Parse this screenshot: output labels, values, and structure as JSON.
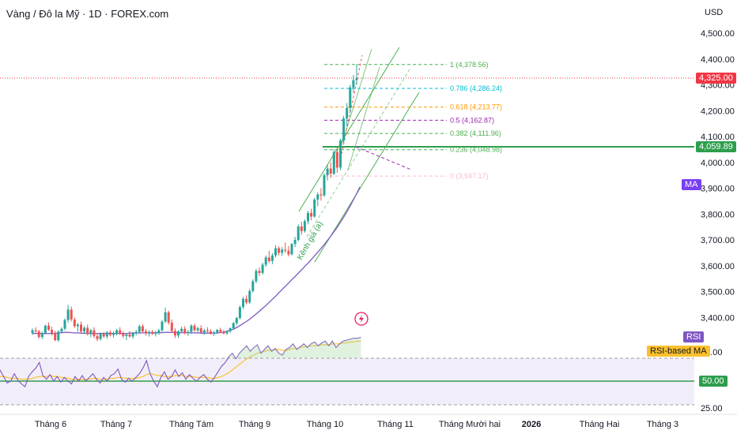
{
  "header": {
    "title": "Vàng / Đô la Mỹ · 1D · FOREX.com",
    "currency": "USD"
  },
  "price_axis": {
    "ticks": [
      "4,500.00",
      "4,400.00",
      "4,300.00",
      "4,200.00",
      "4,100.00",
      "4,000.00",
      "3,900.00",
      "3,800.00",
      "3,700.00",
      "3,600.00",
      "3,500.00",
      "3,400.00"
    ],
    "tick_values": [
      4500,
      4400,
      4300,
      4200,
      4100,
      4000,
      3900,
      3800,
      3700,
      3600,
      3500,
      3400
    ]
  },
  "time_axis": {
    "labels": [
      "Tháng 6",
      "Tháng 7",
      "Tháng Tám",
      "Tháng 9",
      "Tháng 10",
      "Tháng 11",
      "Tháng Mười hai",
      "2026",
      "Tháng Hai",
      "Tháng 3"
    ]
  },
  "badges": {
    "last_price": "4,325.00",
    "support_level": "4,059.89",
    "ma_label": "MA",
    "rsi_label": "RSI",
    "rsi_ma_label": "RSI-based MA",
    "rsi_mid": "50.00",
    "rsi_75": "75.00",
    "rsi_25": "25.00"
  },
  "colors": {
    "up": "#26a69a",
    "down": "#ef5350",
    "ma": "#7e57c2",
    "rsi": "#7e57c2",
    "rsi_ma": "#fbc02d",
    "support": "#4caf50",
    "channel": "#4caf50",
    "last_price_badge": "#f23645",
    "support_badge": "#2e9e4d",
    "ma_badge": "#7b3ff2",
    "rsi_badge": "#7e57c2",
    "rsi_ma_badge": "#fbc02d"
  },
  "fibonacci": {
    "levels": [
      {
        "label": "1 (4,378.56)",
        "value": 4378.56,
        "color": "#4caf50"
      },
      {
        "label": "0.786 (4,286.24)",
        "value": 4286.24,
        "color": "#00bcd4"
      },
      {
        "label": "0.618 (4,213.77)",
        "value": 4213.77,
        "color": "#ff9800"
      },
      {
        "label": "0.5 (4,162.87)",
        "value": 4162.87,
        "color": "#9c27b0"
      },
      {
        "label": "0.382 (4,111.96)",
        "value": 4111.96,
        "color": "#4caf50"
      },
      {
        "label": "0.236 (4,048.98)",
        "value": 4048.98,
        "color": "#4caf50"
      },
      {
        "label": "0 (3,947.17)",
        "value": 3947.17,
        "color": "#f8bbd0"
      }
    ]
  },
  "annotations": {
    "channel_label": "Kênh giá (a)"
  },
  "chart_data": {
    "type": "candlestick",
    "title": "Vàng / Đô la Mỹ · 1D · FOREX.com",
    "ylabel": "USD",
    "ylim": [
      3345,
      4560
    ],
    "last_price": 4325.0,
    "support_level": 4059.89,
    "ohlc": [
      [
        3340,
        3358,
        3332,
        3350
      ],
      [
        3350,
        3362,
        3340,
        3346
      ],
      [
        3346,
        3352,
        3318,
        3324
      ],
      [
        3324,
        3345,
        3316,
        3340
      ],
      [
        3340,
        3372,
        3334,
        3368
      ],
      [
        3368,
        3380,
        3348,
        3352
      ],
      [
        3352,
        3364,
        3330,
        3340
      ],
      [
        3340,
        3348,
        3308,
        3312
      ],
      [
        3312,
        3350,
        3306,
        3345
      ],
      [
        3345,
        3362,
        3338,
        3356
      ],
      [
        3356,
        3396,
        3350,
        3390
      ],
      [
        3390,
        3448,
        3380,
        3430
      ],
      [
        3430,
        3442,
        3384,
        3392
      ],
      [
        3392,
        3400,
        3360,
        3366
      ],
      [
        3366,
        3378,
        3344,
        3372
      ],
      [
        3372,
        3384,
        3340,
        3346
      ],
      [
        3346,
        3366,
        3336,
        3360
      ],
      [
        3360,
        3372,
        3330,
        3336
      ],
      [
        3336,
        3356,
        3324,
        3350
      ],
      [
        3350,
        3362,
        3320,
        3328
      ],
      [
        3328,
        3340,
        3308,
        3316
      ],
      [
        3316,
        3342,
        3310,
        3336
      ],
      [
        3336,
        3344,
        3320,
        3326
      ],
      [
        3326,
        3348,
        3318,
        3342
      ],
      [
        3342,
        3350,
        3326,
        3332
      ],
      [
        3332,
        3346,
        3322,
        3340
      ],
      [
        3340,
        3356,
        3330,
        3350
      ],
      [
        3350,
        3362,
        3332,
        3336
      ],
      [
        3336,
        3346,
        3320,
        3328
      ],
      [
        3328,
        3338,
        3312,
        3334
      ],
      [
        3334,
        3348,
        3322,
        3326
      ],
      [
        3326,
        3344,
        3318,
        3340
      ],
      [
        3340,
        3352,
        3330,
        3344
      ],
      [
        3344,
        3372,
        3336,
        3366
      ],
      [
        3366,
        3374,
        3340,
        3346
      ],
      [
        3346,
        3356,
        3330,
        3338
      ],
      [
        3338,
        3350,
        3326,
        3344
      ],
      [
        3344,
        3352,
        3332,
        3336
      ],
      [
        3336,
        3348,
        3326,
        3342
      ],
      [
        3342,
        3356,
        3332,
        3350
      ],
      [
        3350,
        3390,
        3344,
        3384
      ],
      [
        3384,
        3438,
        3378,
        3420
      ],
      [
        3420,
        3426,
        3372,
        3380
      ],
      [
        3380,
        3392,
        3342,
        3348
      ],
      [
        3348,
        3358,
        3320,
        3330
      ],
      [
        3330,
        3350,
        3320,
        3346
      ],
      [
        3346,
        3364,
        3338,
        3356
      ],
      [
        3356,
        3366,
        3334,
        3340
      ],
      [
        3340,
        3352,
        3328,
        3344
      ],
      [
        3344,
        3374,
        3336,
        3368
      ],
      [
        3368,
        3376,
        3344,
        3350
      ],
      [
        3350,
        3364,
        3340,
        3358
      ],
      [
        3358,
        3370,
        3336,
        3342
      ],
      [
        3342,
        3356,
        3332,
        3350
      ],
      [
        3350,
        3362,
        3340,
        3346
      ],
      [
        3346,
        3354,
        3334,
        3338
      ],
      [
        3338,
        3348,
        3328,
        3342
      ],
      [
        3342,
        3356,
        3336,
        3352
      ],
      [
        3352,
        3360,
        3340,
        3344
      ],
      [
        3344,
        3352,
        3334,
        3338
      ],
      [
        3338,
        3350,
        3332,
        3346
      ],
      [
        3346,
        3362,
        3340,
        3358
      ],
      [
        3358,
        3382,
        3352,
        3378
      ],
      [
        3378,
        3402,
        3370,
        3398
      ],
      [
        3398,
        3446,
        3392,
        3440
      ],
      [
        3440,
        3480,
        3432,
        3472
      ],
      [
        3472,
        3486,
        3450,
        3458
      ],
      [
        3458,
        3510,
        3452,
        3502
      ],
      [
        3502,
        3548,
        3496,
        3540
      ],
      [
        3540,
        3588,
        3532,
        3580
      ],
      [
        3580,
        3594,
        3560,
        3572
      ],
      [
        3572,
        3612,
        3566,
        3604
      ],
      [
        3604,
        3640,
        3596,
        3632
      ],
      [
        3632,
        3658,
        3610,
        3618
      ],
      [
        3618,
        3648,
        3606,
        3640
      ],
      [
        3640,
        3680,
        3632,
        3668
      ],
      [
        3668,
        3676,
        3640,
        3650
      ],
      [
        3650,
        3672,
        3638,
        3662
      ],
      [
        3662,
        3690,
        3650,
        3658
      ],
      [
        3658,
        3676,
        3636,
        3644
      ],
      [
        3644,
        3688,
        3640,
        3684
      ],
      [
        3684,
        3712,
        3672,
        3700
      ],
      [
        3700,
        3760,
        3694,
        3752
      ],
      [
        3752,
        3770,
        3720,
        3734
      ],
      [
        3734,
        3780,
        3728,
        3772
      ],
      [
        3772,
        3812,
        3760,
        3804
      ],
      [
        3804,
        3820,
        3776,
        3790
      ],
      [
        3790,
        3862,
        3786,
        3856
      ],
      [
        3856,
        3884,
        3830,
        3876
      ],
      [
        3876,
        3900,
        3852,
        3872
      ],
      [
        3872,
        3958,
        3866,
        3950
      ],
      [
        3950,
        3990,
        3930,
        3976
      ],
      [
        3976,
        4000,
        3940,
        3956
      ],
      [
        3956,
        4050,
        3950,
        4040
      ],
      [
        4040,
        4060,
        3960,
        3980
      ],
      [
        3980,
        4092,
        3970,
        4084
      ],
      [
        4084,
        4180,
        4076,
        4170
      ],
      [
        4170,
        4230,
        4140,
        4210
      ],
      [
        4210,
        4300,
        4190,
        4290
      ],
      [
        4290,
        4338,
        4270,
        4318
      ],
      [
        4318,
        4380,
        4300,
        4325
      ]
    ],
    "ma_series": [
      3338,
      3338,
      3338,
      3338,
      3338,
      3338,
      3338,
      3338,
      3340,
      3341,
      3342,
      3342,
      3341,
      3340,
      3340,
      3339,
      3339,
      3338,
      3338,
      3338,
      3338,
      3338,
      3338,
      3338,
      3338,
      3338,
      3338,
      3338,
      3338,
      3338,
      3339,
      3339,
      3340,
      3340,
      3340,
      3340,
      3340,
      3341,
      3341,
      3341,
      3341,
      3342,
      3342,
      3342,
      3342,
      3341,
      3341,
      3341,
      3341,
      3340,
      3340,
      3340,
      3339,
      3339,
      3339,
      3339,
      3339,
      3340,
      3341,
      3343,
      3346,
      3350,
      3355,
      3361,
      3368,
      3376,
      3384,
      3393,
      3403,
      3413,
      3424,
      3435,
      3446,
      3458,
      3470,
      3482,
      3495,
      3508,
      3520,
      3533,
      3546,
      3558,
      3571,
      3584,
      3597,
      3610,
      3624,
      3638,
      3652,
      3667,
      3682,
      3698,
      3714,
      3731,
      3749,
      3768,
      3788,
      3809,
      3831,
      3855,
      3879,
      3905
    ],
    "rsi_series": [
      62,
      55,
      48,
      50,
      58,
      51,
      47,
      44,
      55,
      60,
      64,
      70,
      56,
      52,
      57,
      50,
      55,
      49,
      54,
      50,
      47,
      55,
      50,
      56,
      50,
      54,
      58,
      52,
      48,
      54,
      50,
      56,
      58,
      63,
      52,
      49,
      53,
      50,
      54,
      58,
      64,
      72,
      58,
      50,
      44,
      54,
      60,
      52,
      55,
      62,
      55,
      59,
      52,
      57,
      53,
      50,
      54,
      57,
      52,
      49,
      54,
      60,
      66,
      70,
      76,
      80,
      74,
      80,
      84,
      88,
      82,
      86,
      89,
      80,
      84,
      88,
      82,
      85,
      80,
      78,
      84,
      86,
      90,
      84,
      87,
      90,
      86,
      90,
      92,
      88,
      91,
      93,
      88,
      93,
      86,
      90,
      93,
      94,
      95,
      96,
      96,
      97
    ],
    "rsi_ma_series": [
      55,
      55,
      54,
      53,
      53,
      53,
      52,
      52,
      52,
      53,
      54,
      55,
      55,
      55,
      56,
      55,
      55,
      54,
      54,
      53,
      52,
      52,
      52,
      52,
      52,
      52,
      53,
      53,
      52,
      52,
      52,
      53,
      53,
      54,
      54,
      53,
      53,
      53,
      53,
      54,
      55,
      57,
      58,
      57,
      56,
      56,
      55,
      55,
      55,
      56,
      56,
      56,
      55,
      55,
      55,
      54,
      54,
      54,
      54,
      53,
      53,
      54,
      55,
      57,
      59,
      62,
      65,
      68,
      71,
      74,
      76,
      78,
      80,
      81,
      82,
      83,
      83,
      84,
      84,
      83,
      83,
      84,
      85,
      85,
      86,
      87,
      87,
      88,
      88,
      88,
      89,
      89,
      89,
      90,
      90,
      90,
      91,
      91,
      92,
      92,
      93,
      93
    ],
    "rsi_levels": {
      "upper": 75,
      "middle": 50,
      "lower": 25
    },
    "x_ticks": [
      "Tháng 6",
      "Tháng 7",
      "Tháng Tám",
      "Tháng 9",
      "Tháng 10",
      "Tháng 11",
      "Tháng Mười hai",
      "2026",
      "Tháng Hai",
      "Tháng 3"
    ],
    "y_ticks": [
      4500,
      4400,
      4300,
      4200,
      4100,
      4000,
      3900,
      3800,
      3700,
      3600,
      3500,
      3400
    ],
    "grid": false,
    "legend": "none"
  }
}
